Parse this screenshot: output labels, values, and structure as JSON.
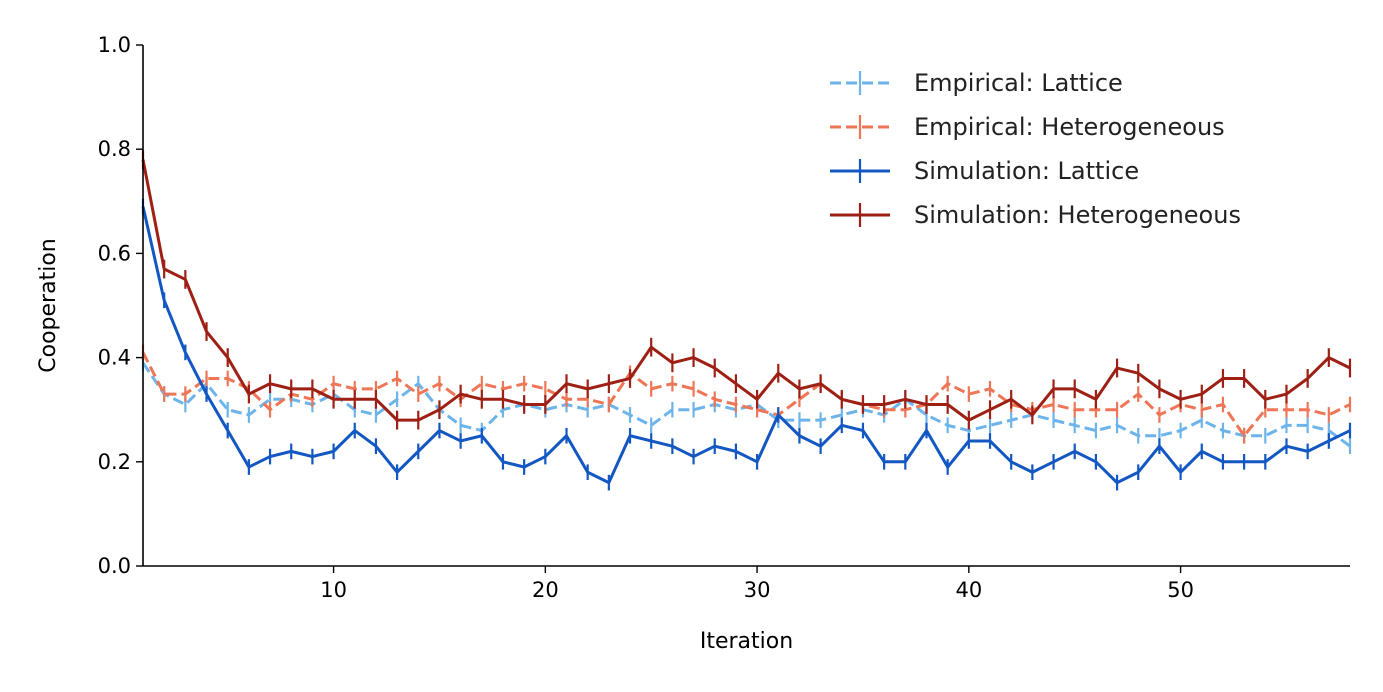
{
  "chart_data": {
    "type": "line",
    "xlabel": "Iteration",
    "ylabel": "Cooperation",
    "xlim": [
      1,
      58
    ],
    "ylim": [
      0.0,
      1.0
    ],
    "xticks": [
      10,
      20,
      30,
      40,
      50
    ],
    "yticks": [
      0.0,
      0.2,
      0.4,
      0.6,
      0.8,
      1.0
    ],
    "ytick_labels": [
      "0.0",
      "0.2",
      "0.4",
      "0.6",
      "0.8",
      "1.0"
    ],
    "grid": false,
    "legend_position": "top-right",
    "x": [
      1,
      2,
      3,
      4,
      5,
      6,
      7,
      8,
      9,
      10,
      11,
      12,
      13,
      14,
      15,
      16,
      17,
      18,
      19,
      20,
      21,
      22,
      23,
      24,
      25,
      26,
      27,
      28,
      29,
      30,
      31,
      32,
      33,
      34,
      35,
      36,
      37,
      38,
      39,
      40,
      41,
      42,
      43,
      44,
      45,
      46,
      47,
      48,
      49,
      50,
      51,
      52,
      53,
      54,
      55,
      56,
      57,
      58
    ],
    "series": [
      {
        "name": "Empirical: Lattice",
        "color": "#6cb4ea",
        "dashed": true,
        "error": 0.015,
        "values": [
          0.39,
          0.33,
          0.31,
          0.35,
          0.3,
          0.29,
          0.32,
          0.32,
          0.31,
          0.33,
          0.3,
          0.29,
          0.32,
          0.35,
          0.3,
          0.27,
          0.26,
          0.3,
          0.31,
          0.3,
          0.31,
          0.3,
          0.31,
          0.29,
          0.27,
          0.3,
          0.3,
          0.31,
          0.3,
          0.31,
          0.28,
          0.28,
          0.28,
          0.29,
          0.3,
          0.29,
          0.32,
          0.29,
          0.27,
          0.26,
          0.27,
          0.28,
          0.29,
          0.28,
          0.27,
          0.26,
          0.27,
          0.25,
          0.25,
          0.26,
          0.28,
          0.26,
          0.25,
          0.25,
          0.27,
          0.27,
          0.26,
          0.23
        ]
      },
      {
        "name": "Empirical: Heterogeneous",
        "color": "#ee7656",
        "dashed": true,
        "error": 0.015,
        "values": [
          0.41,
          0.33,
          0.33,
          0.36,
          0.36,
          0.34,
          0.3,
          0.33,
          0.32,
          0.35,
          0.34,
          0.34,
          0.36,
          0.33,
          0.35,
          0.32,
          0.35,
          0.34,
          0.35,
          0.34,
          0.32,
          0.32,
          0.31,
          0.37,
          0.34,
          0.35,
          0.34,
          0.32,
          0.31,
          0.3,
          0.29,
          0.32,
          0.35,
          0.32,
          0.31,
          0.3,
          0.3,
          0.31,
          0.35,
          0.33,
          0.34,
          0.31,
          0.3,
          0.31,
          0.3,
          0.3,
          0.3,
          0.33,
          0.29,
          0.31,
          0.3,
          0.31,
          0.25,
          0.3,
          0.3,
          0.3,
          0.29,
          0.31
        ]
      },
      {
        "name": "Simulation: Lattice",
        "color": "#1257c2",
        "dashed": false,
        "error": 0.015,
        "values": [
          0.69,
          0.51,
          0.41,
          0.33,
          0.26,
          0.19,
          0.21,
          0.22,
          0.21,
          0.22,
          0.26,
          0.23,
          0.18,
          0.22,
          0.26,
          0.24,
          0.25,
          0.2,
          0.19,
          0.21,
          0.25,
          0.18,
          0.16,
          0.25,
          0.24,
          0.23,
          0.21,
          0.23,
          0.22,
          0.2,
          0.29,
          0.25,
          0.23,
          0.27,
          0.26,
          0.2,
          0.2,
          0.26,
          0.19,
          0.24,
          0.24,
          0.2,
          0.18,
          0.2,
          0.22,
          0.2,
          0.16,
          0.18,
          0.23,
          0.18,
          0.22,
          0.2,
          0.2,
          0.2,
          0.23,
          0.22,
          0.24,
          0.26
        ]
      },
      {
        "name": "Simulation: Heterogeneous",
        "color": "#9e2015",
        "dashed": false,
        "error": 0.018,
        "values": [
          0.78,
          0.57,
          0.55,
          0.45,
          0.4,
          0.33,
          0.35,
          0.34,
          0.34,
          0.32,
          0.32,
          0.32,
          0.28,
          0.28,
          0.3,
          0.33,
          0.32,
          0.32,
          0.31,
          0.31,
          0.35,
          0.34,
          0.35,
          0.36,
          0.42,
          0.39,
          0.4,
          0.38,
          0.35,
          0.32,
          0.37,
          0.34,
          0.35,
          0.32,
          0.31,
          0.31,
          0.32,
          0.31,
          0.31,
          0.28,
          0.3,
          0.32,
          0.29,
          0.34,
          0.34,
          0.32,
          0.38,
          0.37,
          0.34,
          0.32,
          0.33,
          0.36,
          0.36,
          0.32,
          0.33,
          0.36,
          0.4,
          0.38
        ]
      }
    ]
  }
}
